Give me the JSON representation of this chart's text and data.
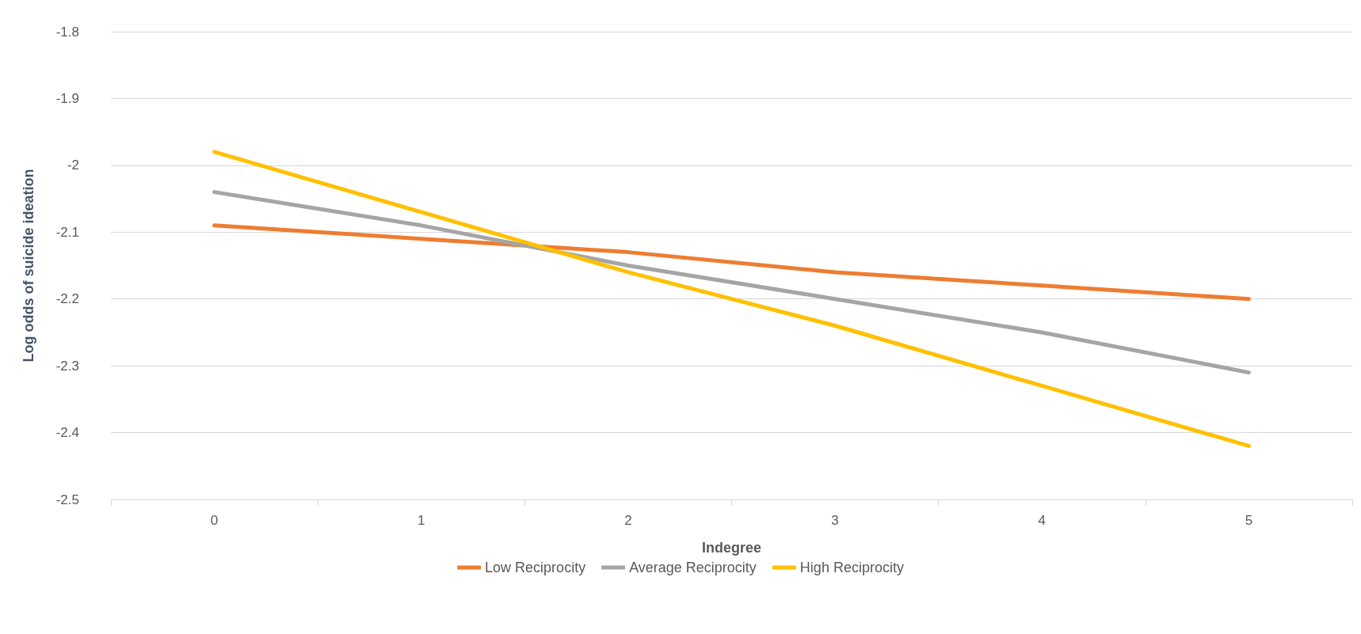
{
  "chart_data": {
    "type": "line",
    "xlabel": "Indegree",
    "ylabel": "Log odds of suicide ideation",
    "categories": [
      "0",
      "1",
      "2",
      "3",
      "4",
      "5"
    ],
    "series": [
      {
        "name": "Low Reciprocity",
        "color": "#ed7d31",
        "values": [
          -2.09,
          -2.11,
          -2.13,
          -2.16,
          -2.18,
          -2.2
        ]
      },
      {
        "name": "Average Reciprocity",
        "color": "#a5a5a5",
        "values": [
          -2.04,
          -2.09,
          -2.15,
          -2.2,
          -2.25,
          -2.31
        ]
      },
      {
        "name": "High Reciprocity",
        "color": "#ffc000",
        "values": [
          -1.98,
          -2.07,
          -2.16,
          -2.24,
          -2.33,
          -2.42
        ]
      }
    ],
    "ylim": [
      -2.5,
      -1.8
    ],
    "yticks": [
      -2.5,
      -2.4,
      -2.3,
      -2.2,
      -2.1,
      -2,
      -1.9,
      -1.8
    ],
    "grid": "y",
    "legend": "bottom",
    "marker": "none",
    "line_style": "solid"
  }
}
